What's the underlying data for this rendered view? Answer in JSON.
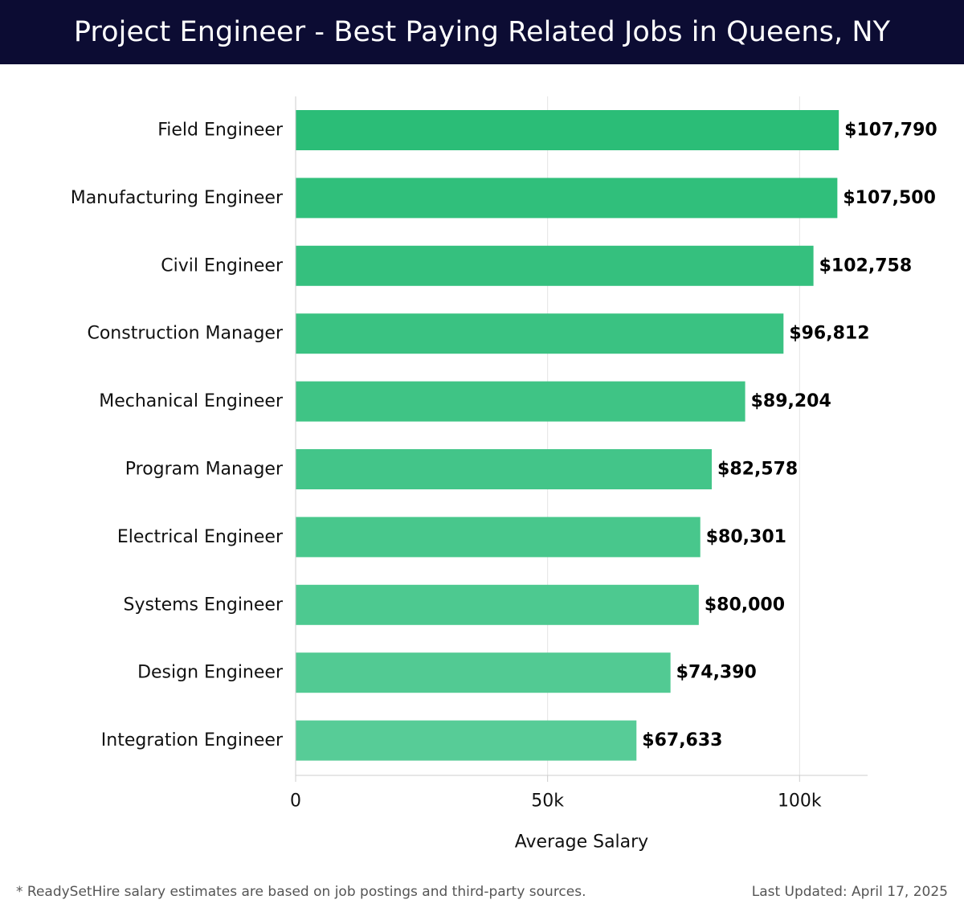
{
  "header": {
    "title": "Project Engineer - Best Paying Related Jobs in Queens, NY"
  },
  "footer": {
    "note": "* ReadySetHire salary estimates are based on job postings and third-party sources.",
    "last_updated": "Last Updated: April 17, 2025"
  },
  "colors": {
    "header_bg": "#0c0c33",
    "bar_darkest": "#2bbd77",
    "bar_lightest": "#57cc97"
  },
  "chart_data": {
    "type": "bar",
    "orientation": "horizontal",
    "categories": [
      "Field Engineer",
      "Manufacturing Engineer",
      "Civil Engineer",
      "Construction Manager",
      "Mechanical Engineer",
      "Program Manager",
      "Electrical Engineer",
      "Systems Engineer",
      "Design Engineer",
      "Integration Engineer"
    ],
    "values": [
      107790,
      107500,
      102758,
      96812,
      89204,
      82578,
      80301,
      80000,
      74390,
      67633
    ],
    "value_labels": [
      "$107,790",
      "$107,500",
      "$102,758",
      "$96,812",
      "$89,204",
      "$82,578",
      "$80,301",
      "$80,000",
      "$74,390",
      "$67,633"
    ],
    "xlabel": "Average Salary",
    "ylabel": "",
    "xlim": [
      0,
      113500
    ],
    "xticks": [
      0,
      50000,
      100000
    ],
    "xtick_labels": [
      "0",
      "50k",
      "100k"
    ],
    "grid": true
  }
}
